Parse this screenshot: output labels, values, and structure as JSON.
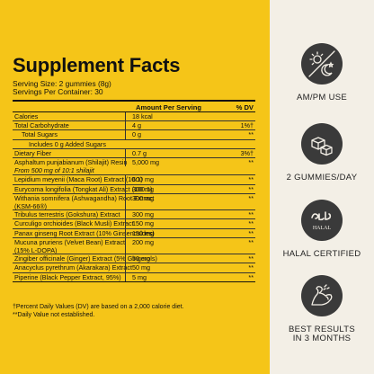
{
  "facts": {
    "title": "Supplement Facts",
    "serving_size": "Serving Size: 2 gummies (8g)",
    "servings_per_container": "Servings Per Container: 30",
    "header_amount": "Amount Per Serving",
    "header_dv": "% DV",
    "rows": [
      {
        "name": "Calories",
        "amount": "18 kcal",
        "dv": ""
      },
      {
        "name": "Total Carbohydrate",
        "amount": "4 g",
        "dv": "1%†"
      },
      {
        "name": "Total Sugars",
        "amount": "0 g",
        "dv": "**"
      },
      {
        "name": "Includes 0 g Added Sugars",
        "amount": "",
        "dv": ""
      },
      {
        "name": "Dietary Fiber",
        "amount": "0.7 g",
        "dv": "3%†"
      },
      {
        "name": "Asphaltum punjabianum (Shilajit) Resin",
        "amount": "5,000 mg",
        "dv": "**"
      },
      {
        "name": "From 500 mg of 10:1 shilajit",
        "amount": "",
        "dv": ""
      },
      {
        "name": "Lepidium meyenii (Maca Root) Extract (10:1)",
        "amount": "600 mg",
        "dv": "**"
      },
      {
        "name": "Eurycoma longifolia (Tongkat Ali) Extract (100:1)",
        "amount": "300 mg",
        "dv": "**"
      },
      {
        "name": "Withania somnifera (Ashwagandha) Root Extract",
        "name2": "(KSM-66®)",
        "amount": "300 mg",
        "dv": "**"
      },
      {
        "name": "Tribulus terrestris (Gokshura) Extract",
        "amount": "300 mg",
        "dv": "**"
      },
      {
        "name": "Curculigo orchioides (Black Musli) Extract",
        "amount": "150 mg",
        "dv": "**"
      },
      {
        "name": "Panax ginseng Root Extract (10% Ginsenosides)",
        "amount": "150 mg",
        "dv": "**"
      },
      {
        "name": "Mucuna pruriens (Velvet Bean) Extract",
        "name2": "(15% L-DOPA)",
        "amount": "200 mg",
        "dv": "**"
      },
      {
        "name": "Zingiber officinale (Ginger) Extract (5% Gingerols)",
        "amount": "50 mg",
        "dv": "**"
      },
      {
        "name": "Anacyclus pyrethrum (Akarakara) Extract",
        "amount": "50 mg",
        "dv": "**"
      },
      {
        "name": "Piperine (Black Pepper Extract, 95%)",
        "amount": "5 mg",
        "dv": "**"
      }
    ],
    "footnote1": "†Percent Daily Values (DV) are based on a 2,000 calorie diet.",
    "footnote2": "**Daily Value not established."
  },
  "features": [
    {
      "icon": "sun-moon-icon",
      "label": "AM/PM USE",
      "label2": ""
    },
    {
      "icon": "gummies-icon",
      "label": "2 GUMMIES/DAY",
      "label2": ""
    },
    {
      "icon": "halal-icon",
      "label": "HALAL CERTIFIED",
      "label2": "",
      "badge_text": "HALAL"
    },
    {
      "icon": "flexed-arm-icon",
      "label": "BEST RESULTS",
      "label2": "IN 3 MONTHS"
    }
  ],
  "colors": {
    "background": "#f5c518",
    "panel": "#f3efe6",
    "icon_circle": "#3a3a3a"
  }
}
